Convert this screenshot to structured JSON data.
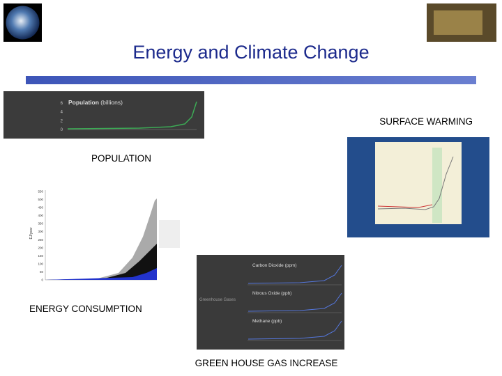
{
  "header": {
    "title": "Energy and Climate Change"
  },
  "panels": [
    {
      "caption": "POPULATION",
      "image_title": "Population",
      "image_subtitle": "(billions)",
      "ticks": [
        6,
        4,
        2,
        0
      ]
    },
    {
      "caption": "SURFACE WARMING"
    },
    {
      "caption": "ENERGY CONSUMPTION",
      "axis_label": "EJ/year",
      "ticks": [
        550,
        500,
        450,
        400,
        350,
        300,
        250,
        200,
        150,
        100,
        50,
        0
      ]
    },
    {
      "caption": "GREEN HOUSE GAS INCREASE",
      "side_label": "Greenhouse Gases",
      "series": [
        "Carbon Dioxide (ppm)",
        "Nitrous Oxide (ppb)",
        "Methane (ppb)"
      ]
    }
  ]
}
